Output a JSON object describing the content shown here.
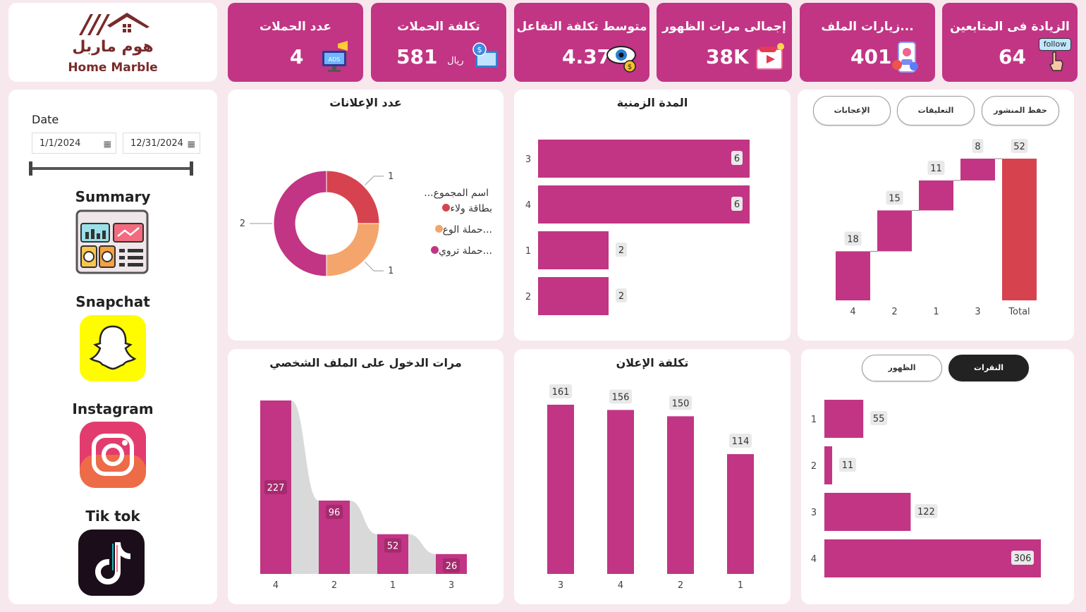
{
  "logo": {
    "arabic": "هوم ماربل",
    "english": "Home Marble"
  },
  "colors": {
    "brand": "#c13584",
    "total": "#d6434e",
    "page_bg": "#f7e8ee",
    "donut": [
      "#d6434e",
      "#f4a56b",
      "#c13584"
    ],
    "ribbon": "#d9d9d9"
  },
  "kpis": [
    {
      "title": "عدد الحملات",
      "value": "4",
      "unit": "",
      "icon": "ads-monitor-icon"
    },
    {
      "title": "تكلفة الحملات",
      "value": "581",
      "unit": "ريال",
      "icon": "money-screen-icon"
    },
    {
      "title": "متوسط تكلفة التفاعل",
      "value": "4.37",
      "unit": "",
      "icon": "eye-dollar-icon"
    },
    {
      "title": "إجمالى مرات الظهور",
      "value": "38K",
      "unit": "",
      "icon": "video-screen-icon"
    },
    {
      "title": "...زيارات الملف",
      "value": "401",
      "unit": "",
      "icon": "profile-phone-icon"
    },
    {
      "title": "الزيادة فى المتابعين",
      "value": "64",
      "unit": "",
      "icon": "follow-button-icon",
      "badge": "follow"
    }
  ],
  "filters": {
    "date_label": "Date",
    "start_date": "1/1/2024",
    "end_date": "12/31/2024"
  },
  "nav": [
    {
      "label": "Summary",
      "icon": "dashboard-icon"
    },
    {
      "label": "Snapchat",
      "icon": "snapchat-icon"
    },
    {
      "label": "Instagram",
      "icon": "instagram-icon"
    },
    {
      "label": "Tik tok",
      "icon": "tiktok-icon"
    }
  ],
  "toggles_top": [
    "الإعجابات",
    "التعليقات",
    "حفظ المنشور"
  ],
  "toggles_bottom": [
    "الظهور",
    "النقرات"
  ],
  "toggles_bottom_active": "النقرات",
  "chart_data": [
    {
      "type": "pie",
      "title": "عدد الإعلانات",
      "legend_title": "...اسم المجموع",
      "categories": [
        "بطاقة ولاء",
        "...حملة الوع",
        "...حملة تروي"
      ],
      "values": [
        1,
        1,
        2
      ],
      "data_labels": [
        "1",
        "1",
        "2"
      ]
    },
    {
      "type": "bar",
      "orientation": "horizontal",
      "title": "المدة الزمنية",
      "categories": [
        "3",
        "4",
        "1",
        "2"
      ],
      "values": [
        6,
        6,
        2,
        2
      ],
      "xlim": [
        0,
        6.6
      ]
    },
    {
      "type": "bar",
      "subtype": "waterfall",
      "title": "",
      "categories": [
        "4",
        "2",
        "1",
        "3",
        "Total"
      ],
      "values": [
        18,
        15,
        11,
        8,
        52
      ],
      "ylim": [
        0,
        52
      ]
    },
    {
      "type": "bar",
      "subtype": "ribbon",
      "title": "مرات الدخول على الملف الشخصي",
      "categories": [
        "4",
        "2",
        "1",
        "3"
      ],
      "values": [
        227,
        96,
        52,
        26
      ],
      "ylim": [
        0,
        227
      ]
    },
    {
      "type": "bar",
      "title": "تكلفة الإعلان",
      "categories": [
        "3",
        "4",
        "2",
        "1"
      ],
      "values": [
        161,
        156,
        150,
        114
      ],
      "ylim": [
        0,
        161
      ]
    },
    {
      "type": "bar",
      "orientation": "horizontal",
      "title": "",
      "categories": [
        "1",
        "2",
        "3",
        "4"
      ],
      "values": [
        55,
        11,
        122,
        306
      ],
      "xlim": [
        0,
        306
      ]
    }
  ]
}
